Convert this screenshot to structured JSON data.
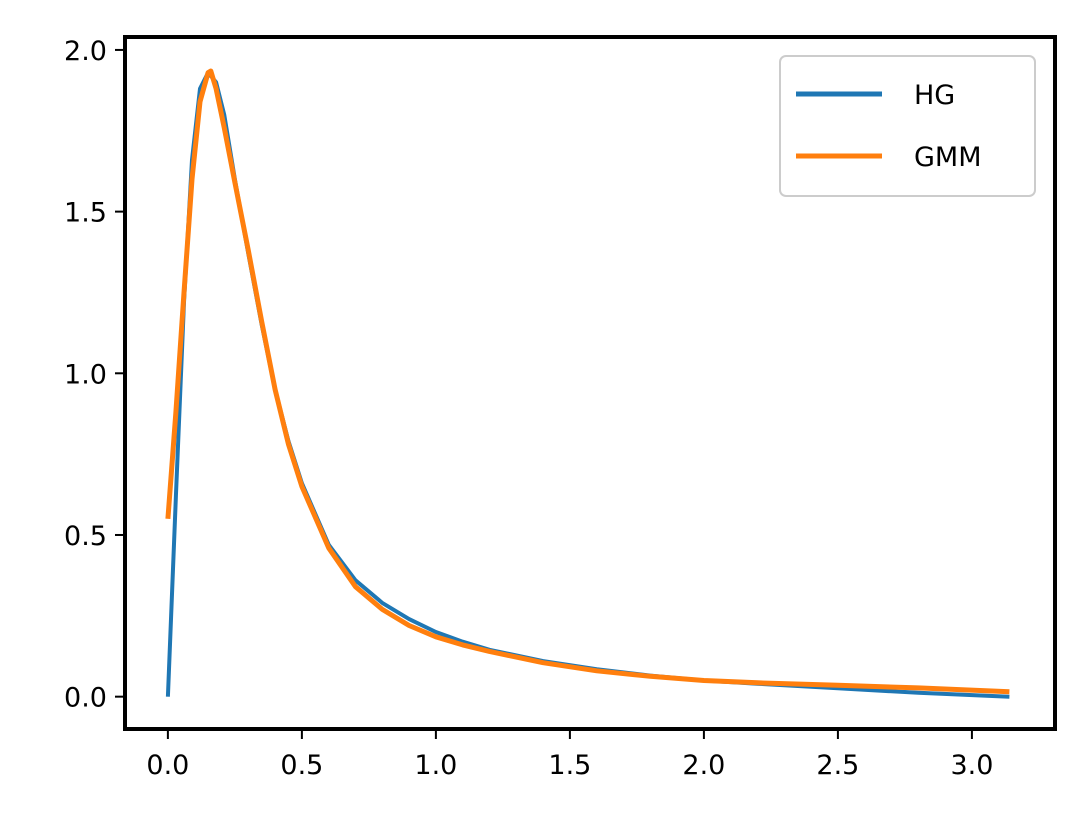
{
  "chart_data": {
    "type": "line",
    "title": "",
    "xlabel": "",
    "ylabel": "",
    "xlim": [
      -0.16,
      3.31
    ],
    "ylim": [
      -0.1,
      2.04
    ],
    "xticks": [
      0.0,
      0.5,
      1.0,
      1.5,
      2.0,
      2.5,
      3.0
    ],
    "xtick_labels": [
      "0.0",
      "0.5",
      "1.0",
      "1.5",
      "2.0",
      "2.5",
      "3.0"
    ],
    "yticks": [
      0.0,
      0.5,
      1.0,
      1.5,
      2.0
    ],
    "ytick_labels": [
      "0.0",
      "0.5",
      "1.0",
      "1.5",
      "2.0"
    ],
    "grid": false,
    "legend_position": "top-right",
    "series": [
      {
        "name": "HG",
        "color": "#1f77b4",
        "x": [
          0.0,
          0.03,
          0.06,
          0.09,
          0.12,
          0.15,
          0.18,
          0.21,
          0.25,
          0.3,
          0.35,
          0.4,
          0.45,
          0.5,
          0.6,
          0.7,
          0.8,
          0.9,
          1.0,
          1.1,
          1.2,
          1.4,
          1.6,
          1.8,
          2.0,
          2.2,
          2.5,
          2.8,
          3.14
        ],
        "y": [
          0.0,
          0.62,
          1.22,
          1.66,
          1.88,
          1.93,
          1.9,
          1.8,
          1.6,
          1.37,
          1.15,
          0.95,
          0.79,
          0.66,
          0.47,
          0.36,
          0.29,
          0.24,
          0.2,
          0.17,
          0.145,
          0.11,
          0.085,
          0.065,
          0.05,
          0.04,
          0.026,
          0.012,
          0.0
        ]
      },
      {
        "name": "GMM",
        "color": "#ff7f0e",
        "x": [
          0.0,
          0.03,
          0.06,
          0.09,
          0.12,
          0.15,
          0.16,
          0.18,
          0.21,
          0.25,
          0.3,
          0.35,
          0.4,
          0.45,
          0.5,
          0.6,
          0.7,
          0.8,
          0.9,
          1.0,
          1.1,
          1.2,
          1.4,
          1.6,
          1.8,
          2.0,
          2.2,
          2.5,
          2.8,
          3.14
        ],
        "y": [
          0.55,
          0.88,
          1.25,
          1.6,
          1.84,
          1.93,
          1.935,
          1.88,
          1.76,
          1.59,
          1.38,
          1.16,
          0.95,
          0.78,
          0.65,
          0.46,
          0.34,
          0.27,
          0.22,
          0.185,
          0.16,
          0.14,
          0.105,
          0.08,
          0.063,
          0.05,
          0.043,
          0.035,
          0.027,
          0.015
        ]
      }
    ]
  }
}
